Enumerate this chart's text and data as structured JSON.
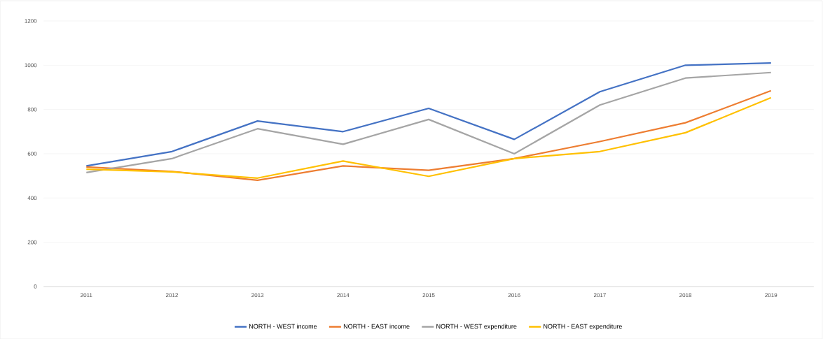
{
  "chart_data": {
    "type": "line",
    "categories": [
      "2011",
      "2012",
      "2013",
      "2014",
      "2015",
      "2016",
      "2017",
      "2018",
      "2019"
    ],
    "series": [
      {
        "name": "NORTH - WEST income",
        "color": "#4472c4",
        "values": [
          545,
          610,
          748,
          700,
          805,
          665,
          880,
          1000,
          1010
        ]
      },
      {
        "name": "NORTH - EAST income",
        "color": "#ed7d31",
        "values": [
          540,
          520,
          480,
          545,
          525,
          578,
          655,
          740,
          885
        ]
      },
      {
        "name": "NORTH - WEST expenditure",
        "color": "#a5a5a5",
        "values": [
          515,
          578,
          713,
          643,
          755,
          600,
          820,
          942,
          967
        ]
      },
      {
        "name": "NORTH - EAST expenditure",
        "color": "#ffc000",
        "values": [
          530,
          518,
          490,
          567,
          498,
          578,
          610,
          695,
          853
        ]
      }
    ],
    "ylim": [
      0,
      1200
    ],
    "yticks": [
      0,
      200,
      400,
      600,
      800,
      1000,
      1200
    ],
    "grid": "y",
    "legend": "bottom",
    "marker": "none",
    "line_style": "solid"
  }
}
